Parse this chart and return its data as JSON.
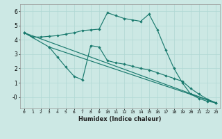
{
  "xlabel": "Humidex (Indice chaleur)",
  "bg_color": "#cce8e4",
  "grid_color": "#b0d8d4",
  "line_color": "#1a7a6e",
  "xlim": [
    -0.5,
    23.5
  ],
  "ylim": [
    -0.8,
    6.5
  ],
  "yticks": [
    0,
    1,
    2,
    3,
    4,
    5,
    6
  ],
  "ytick_labels": [
    "-0",
    "1",
    "2",
    "3",
    "4",
    "5",
    "6"
  ],
  "xticks": [
    0,
    1,
    2,
    3,
    4,
    5,
    6,
    7,
    8,
    9,
    10,
    11,
    12,
    13,
    14,
    15,
    16,
    17,
    18,
    19,
    20,
    21,
    22,
    23
  ],
  "series": [
    {
      "x": [
        0,
        1,
        2,
        3,
        4,
        5,
        6,
        7,
        8,
        9,
        10,
        11,
        12,
        13,
        14,
        15,
        16,
        17,
        18,
        19,
        20,
        21,
        22,
        23
      ],
      "y": [
        4.5,
        4.2,
        4.2,
        4.25,
        4.3,
        4.4,
        4.5,
        4.65,
        4.7,
        4.75,
        5.9,
        5.7,
        5.5,
        5.4,
        5.3,
        5.8,
        4.7,
        3.3,
        2.0,
        1.0,
        0.2,
        -0.1,
        -0.3,
        -0.4
      ]
    },
    {
      "x": [
        0,
        3,
        4,
        5,
        6,
        7,
        8,
        9,
        10,
        11,
        12,
        13,
        14,
        15,
        16,
        17,
        18,
        19,
        20,
        21,
        22,
        23
      ],
      "y": [
        4.5,
        3.5,
        2.8,
        2.1,
        1.45,
        1.2,
        3.6,
        3.5,
        2.55,
        2.4,
        2.3,
        2.15,
        2.0,
        1.9,
        1.7,
        1.5,
        1.3,
        1.1,
        0.6,
        0.2,
        -0.15,
        -0.4
      ]
    },
    {
      "x": [
        0,
        23
      ],
      "y": [
        4.5,
        -0.4
      ]
    },
    {
      "x": [
        3,
        23
      ],
      "y": [
        3.5,
        -0.4
      ]
    }
  ]
}
